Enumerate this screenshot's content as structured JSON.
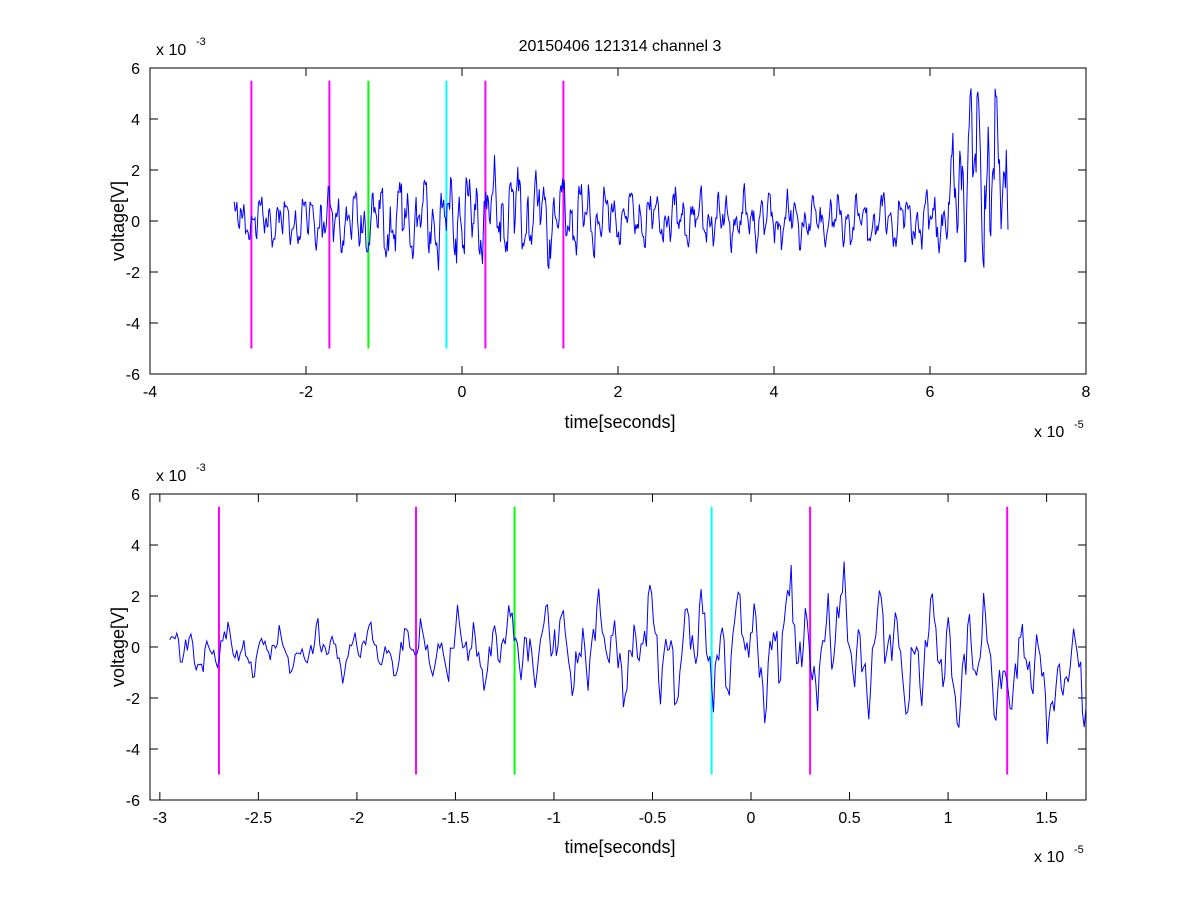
{
  "figure": {
    "title": "20150406 121314 channel 3"
  },
  "colors": {
    "signal": "#0000ff",
    "magenta": "#ff00ff",
    "green": "#00ff00",
    "cyan": "#00ffff",
    "axis": "#000000"
  },
  "chart_data": [
    {
      "type": "line",
      "title": "20150406 121314 channel 3",
      "xlabel": "time[seconds]",
      "ylabel": "voltage[V]",
      "xlim": [
        -4,
        8
      ],
      "ylim": [
        -6,
        6
      ],
      "x_scale_label": "x 10",
      "x_scale_exp": "-5",
      "y_scale_label": "x 10",
      "y_scale_exp": "-3",
      "xticks": [
        -4,
        -2,
        0,
        2,
        4,
        6,
        8
      ],
      "xtick_labels": [
        "-4",
        "-2",
        "0",
        "2",
        "4",
        "6",
        "8"
      ],
      "yticks": [
        -6,
        -4,
        -2,
        0,
        2,
        4,
        6
      ],
      "ytick_labels": [
        "-6",
        "-4",
        "-2",
        "0",
        "2",
        "4",
        "6"
      ],
      "grid": false,
      "series": [
        {
          "kind": "signal",
          "x_start": -2.93,
          "x_end": 7.0,
          "n": 900,
          "profile": [
            [
              -2.93,
              0.0
            ],
            [
              -0.3,
              0.0
            ],
            [
              0.5,
              0.4
            ],
            [
              1.5,
              0.1
            ],
            [
              6.2,
              0.0
            ],
            [
              6.5,
              2.5
            ],
            [
              7.0,
              1.5
            ]
          ],
          "amplitude_envelope": [
            [
              -2.93,
              0.8
            ],
            [
              -2.0,
              1.0
            ],
            [
              -0.8,
              1.6
            ],
            [
              0.5,
              1.8
            ],
            [
              1.2,
              1.7
            ],
            [
              2.0,
              1.0
            ],
            [
              6.2,
              1.0
            ],
            [
              6.4,
              3.5
            ],
            [
              6.8,
              3.5
            ],
            [
              7.0,
              2.5
            ]
          ]
        }
      ],
      "markers": [
        {
          "x": -2.7,
          "color": "magenta",
          "y_range": [
            -5,
            5.5
          ]
        },
        {
          "x": -1.7,
          "color": "magenta",
          "y_range": [
            -5,
            5.5
          ]
        },
        {
          "x": -1.2,
          "color": "green",
          "y_range": [
            -5,
            5.5
          ]
        },
        {
          "x": -0.2,
          "color": "cyan",
          "y_range": [
            -5,
            5.5
          ]
        },
        {
          "x": 0.3,
          "color": "magenta",
          "y_range": [
            -5,
            5.5
          ]
        },
        {
          "x": 1.3,
          "color": "magenta",
          "y_range": [
            -5,
            5.5
          ]
        }
      ]
    },
    {
      "type": "line",
      "title": "",
      "xlabel": "time[seconds]",
      "ylabel": "voltage[V]",
      "xlim": [
        -3.05,
        1.7
      ],
      "ylim": [
        -6,
        6
      ],
      "x_scale_label": "x 10",
      "x_scale_exp": "-5",
      "y_scale_label": "x 10",
      "y_scale_exp": "-3",
      "xticks": [
        -3,
        -2.5,
        -2,
        -1.5,
        -1,
        -0.5,
        0,
        0.5,
        1,
        1.5
      ],
      "xtick_labels": [
        "-3",
        "-2.5",
        "-2",
        "-1.5",
        "-1",
        "-0.5",
        "0",
        "0.5",
        "1",
        "1.5"
      ],
      "yticks": [
        -6,
        -4,
        -2,
        0,
        2,
        4,
        6
      ],
      "ytick_labels": [
        "-6",
        "-4",
        "-2",
        "0",
        "2",
        "4",
        "6"
      ],
      "grid": false,
      "series": [
        {
          "kind": "signal",
          "x_start": -2.95,
          "x_end": 1.7,
          "n": 520,
          "profile": [
            [
              -2.95,
              -0.2
            ],
            [
              -0.5,
              0.0
            ],
            [
              0.5,
              0.2
            ],
            [
              1.7,
              -1.5
            ]
          ],
          "amplitude_envelope": [
            [
              -2.95,
              0.8
            ],
            [
              -2.0,
              0.9
            ],
            [
              -1.2,
              1.4
            ],
            [
              -0.6,
              2.0
            ],
            [
              0.5,
              2.4
            ],
            [
              1.2,
              2.2
            ],
            [
              1.7,
              1.6
            ]
          ]
        }
      ],
      "markers": [
        {
          "x": -2.7,
          "color": "magenta",
          "y_range": [
            -5,
            5.5
          ]
        },
        {
          "x": -1.7,
          "color": "magenta",
          "y_range": [
            -5,
            5.5
          ]
        },
        {
          "x": -1.2,
          "color": "green",
          "y_range": [
            -5,
            5.5
          ]
        },
        {
          "x": -0.2,
          "color": "cyan",
          "y_range": [
            -5,
            5.5
          ]
        },
        {
          "x": 0.3,
          "color": "magenta",
          "y_range": [
            -5,
            5.5
          ]
        },
        {
          "x": 1.3,
          "color": "magenta",
          "y_range": [
            -5,
            5.5
          ]
        }
      ]
    }
  ]
}
